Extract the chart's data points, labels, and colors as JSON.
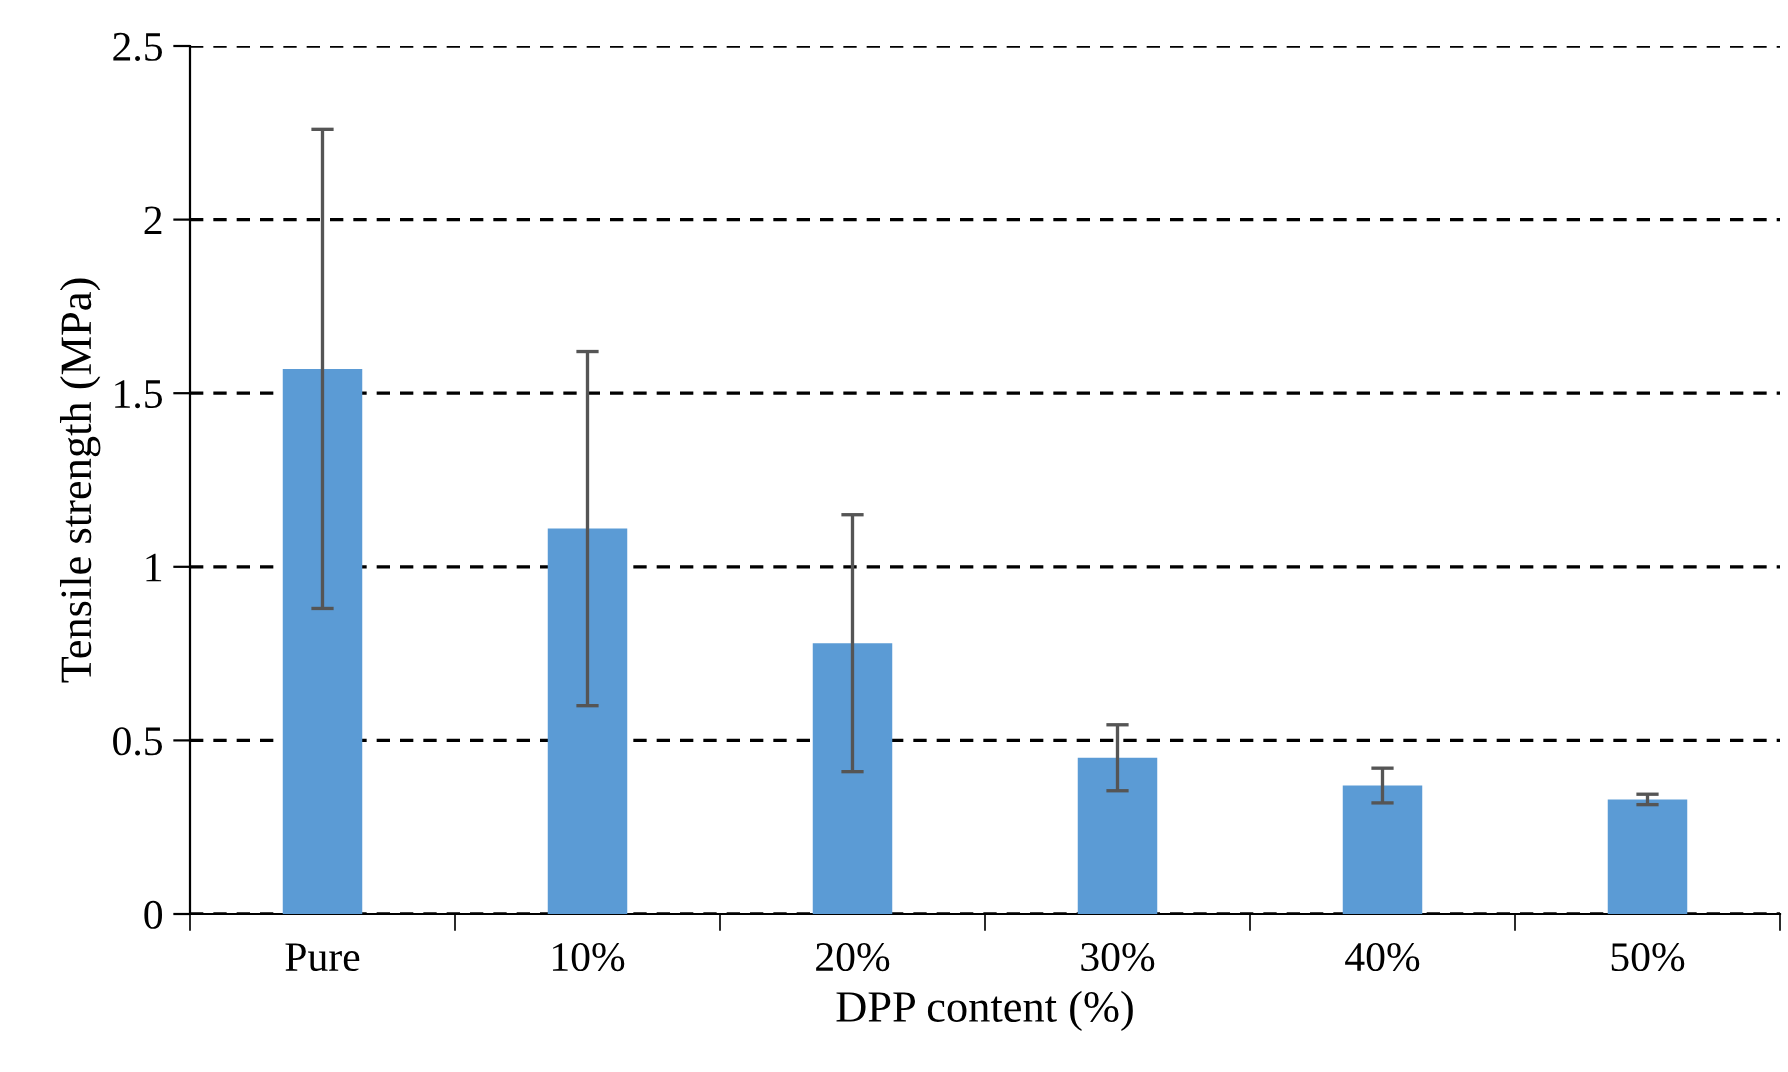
{
  "chart_data": {
    "type": "bar",
    "xlabel": "DPP content (%)",
    "ylabel": "Tensile strength (MPa)",
    "categories": [
      "Pure",
      "10%",
      "20%",
      "30%",
      "40%",
      "50%"
    ],
    "values": [
      1.57,
      1.11,
      0.78,
      0.45,
      0.37,
      0.33
    ],
    "errors": [
      0.69,
      0.51,
      0.37,
      0.095,
      0.05,
      0.015
    ],
    "color": "#5b9bd5",
    "ylim": [
      0,
      2.5
    ],
    "yticks": [
      {
        "value": 0,
        "label": "0"
      },
      0.5,
      {
        "value": 1,
        "label": "1"
      },
      1.5,
      {
        "value": 2,
        "label": "2"
      },
      2.5
    ],
    "grid": "y",
    "line_style": "dashed"
  }
}
